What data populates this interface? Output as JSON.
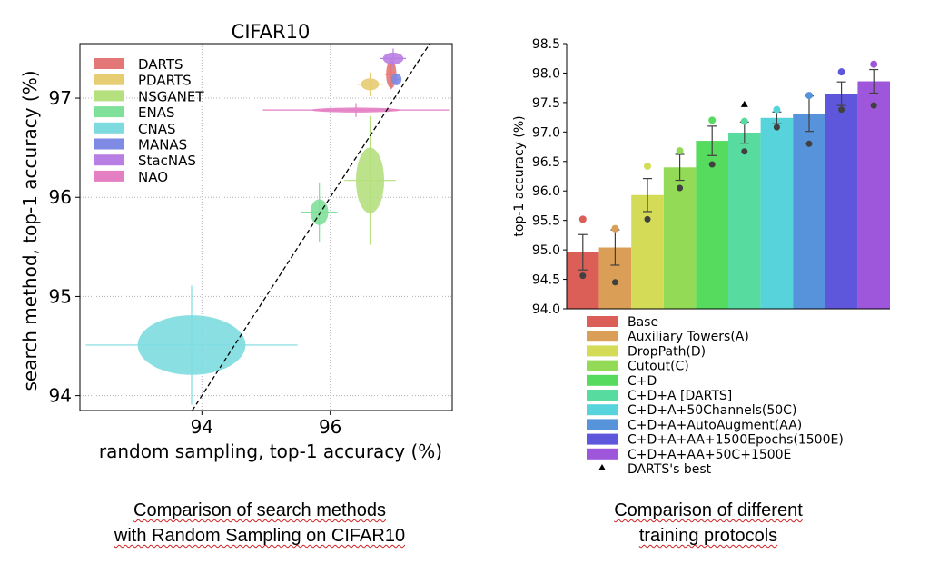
{
  "captions": {
    "left": [
      "Comparison of search methods",
      "with Random Sampling on CIFAR10"
    ],
    "right": [
      "Comparison of different",
      "training protocols"
    ]
  },
  "chart_data": [
    {
      "type": "scatter",
      "title": "CIFAR10",
      "xlabel": "random sampling, top-1 accuracy (%)",
      "ylabel": "search method, top-1 accuracy (%)",
      "xlim": [
        92.1,
        97.9
      ],
      "ylim": [
        93.85,
        97.55
      ],
      "xticks": [
        94,
        96
      ],
      "yticks": [
        94,
        95,
        96,
        97
      ],
      "grid": true,
      "legend_position": "top-left",
      "diagonal": true,
      "series": [
        {
          "name": "DARTS",
          "color": "#e37777",
          "x": 96.95,
          "y": 97.24,
          "xerr": 0.1,
          "yerr": 0.15,
          "ew": 0.08,
          "eh": 0.14
        },
        {
          "name": "PDARTS",
          "color": "#e6cc73",
          "x": 96.62,
          "y": 97.14,
          "xerr": 0.2,
          "yerr": 0.12,
          "ew": 0.14,
          "eh": 0.06
        },
        {
          "name": "NSGANET",
          "color": "#b5e07e",
          "x": 96.62,
          "y": 96.17,
          "xerr": 0.4,
          "yerr": 0.65,
          "ew": 0.22,
          "eh": 0.33
        },
        {
          "name": "ENAS",
          "color": "#7fe09a",
          "x": 95.83,
          "y": 95.85,
          "xerr": 0.28,
          "yerr": 0.3,
          "ew": 0.14,
          "eh": 0.13
        },
        {
          "name": "CNAS",
          "color": "#7ddbe0",
          "x": 93.84,
          "y": 94.51,
          "xerr": 1.65,
          "yerr": 0.6,
          "ew": 0.84,
          "eh": 0.3
        },
        {
          "name": "MANAS",
          "color": "#7e8ae3",
          "x": 97.03,
          "y": 97.19,
          "xerr": 0.05,
          "yerr": 0.05,
          "ew": 0.08,
          "eh": 0.06
        },
        {
          "name": "StacNAS",
          "color": "#b97ee3",
          "x": 96.98,
          "y": 97.4,
          "xerr": 0.2,
          "yerr": 0.1,
          "ew": 0.16,
          "eh": 0.06
        },
        {
          "name": "NAO",
          "color": "#e47fc4",
          "x": 96.4,
          "y": 96.88,
          "xerr": 1.45,
          "yerr": 0.07,
          "ew": 0.7,
          "eh": 0.025
        }
      ]
    },
    {
      "type": "bar",
      "ylabel": "top-1 accuracy (%)",
      "ylim": [
        94.0,
        98.5
      ],
      "yticks": [
        "94.0",
        "94.5",
        "95.0",
        "95.5",
        "96.0",
        "96.5",
        "97.0",
        "97.5",
        "98.0",
        "98.5"
      ],
      "legend_position": "bottom",
      "categories": [
        "Base",
        "Auxiliary Towers(A)",
        "DropPath(D)",
        "Cutout(C)",
        "C+D",
        "C+D+A [DARTS]",
        "C+D+A+50Channels(50C)",
        "C+D+A+AutoAugment(AA)",
        "C+D+A+AA+1500Epochs(1500E)",
        "C+D+A+AA+50C+1500E"
      ],
      "colors": [
        "#db5f57",
        "#db9e57",
        "#d3db57",
        "#93db57",
        "#57db5f",
        "#57db9e",
        "#57d3db",
        "#5793db",
        "#5f57db",
        "#9e57db"
      ],
      "values": [
        94.96,
        95.04,
        95.93,
        96.4,
        96.85,
        96.99,
        97.24,
        97.31,
        97.65,
        97.86
      ],
      "err": [
        0.3,
        0.3,
        0.28,
        0.22,
        0.25,
        0.18,
        0.1,
        0.3,
        0.2,
        0.2
      ],
      "max_points": [
        95.52,
        95.36,
        96.42,
        96.68,
        97.2,
        97.18,
        97.38,
        97.62,
        98.02,
        98.15
      ],
      "min_points": [
        94.56,
        94.45,
        95.52,
        96.05,
        96.45,
        96.67,
        97.08,
        96.8,
        97.38,
        97.45
      ],
      "darts_best": {
        "label": "DARTS's best",
        "category_index": 5,
        "value": 97.47
      }
    }
  ]
}
